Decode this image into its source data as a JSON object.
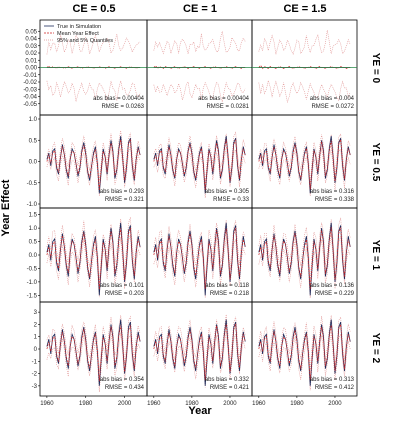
{
  "figure": {
    "xlabel": "Year",
    "ylabel": "Year Effect",
    "columns": [
      "CE = 0.5",
      "CE = 1",
      "CE = 1.5"
    ],
    "rows": [
      "YE = 0",
      "YE = 0.5",
      "YE = 1",
      "YE = 2"
    ],
    "legend": [
      {
        "label": "True in Simulation",
        "color": "#1a2a5a",
        "style": "solid"
      },
      {
        "label": "Mean Year Effect",
        "color": "#cc2222",
        "style": "dashed"
      },
      {
        "label": "95% and 5% Quantiles",
        "color": "#e09090",
        "style": "dotted"
      }
    ]
  },
  "chart_data": {
    "type": "line",
    "xlim": [
      1958,
      2010
    ],
    "x_ticks": [
      1960,
      1980,
      2000
    ],
    "x_tick_labels": [
      "1960",
      "1980",
      "2000"
    ],
    "rows": [
      {
        "name": "YE = 0",
        "ylim": [
          -0.06,
          0.06
        ],
        "y_ticks": [
          -0.05,
          -0.04,
          -0.03,
          -0.02,
          -0.01,
          0.0,
          0.01,
          0.02,
          0.03,
          0.04,
          0.05
        ],
        "y_tick_labels": [
          "-0.05",
          "-0.04",
          "-0.03",
          "-0.02",
          "-0.01",
          "0.00",
          "0.01",
          "0.02",
          "0.03",
          "0.04",
          "0.05"
        ],
        "amp": 0.0
      },
      {
        "name": "YE = 0.5",
        "ylim": [
          -1.0,
          1.0
        ],
        "y_ticks": [
          -1.0,
          -0.5,
          0.0,
          0.5,
          1.0
        ],
        "y_tick_labels": [
          "-1.0",
          "-0.5",
          "0.0",
          "0.5",
          "1.0"
        ],
        "amp": 0.5
      },
      {
        "name": "YE = 1",
        "ylim": [
          -1.6,
          1.6
        ],
        "y_ticks": [
          -1.5,
          -1.0,
          -0.5,
          0.0,
          0.5,
          1.0,
          1.5
        ],
        "y_tick_labels": [
          "-1.5",
          "-1.0",
          "-0.5",
          "0.0",
          "0.5",
          "1.0",
          "1.5"
        ],
        "amp": 1.0
      },
      {
        "name": "YE = 2",
        "ylim": [
          -3.5,
          3.5
        ],
        "y_ticks": [
          -3,
          -2,
          -1,
          0,
          1,
          2,
          3
        ],
        "y_tick_labels": [
          "-3",
          "-2",
          "-1",
          "0",
          "1",
          "2",
          "3"
        ],
        "amp": 2.0
      }
    ],
    "panels": [
      [
        {
          "abs_bias": "abs bias = 0.00404",
          "rmse": "RMSE = 0.0263"
        },
        {
          "abs_bias": "abs bias = 0.00404",
          "rmse": "RMSE = 0.0281"
        },
        {
          "abs_bias": "abs bias = 0.004",
          "rmse": "RMSE = 0.0272"
        }
      ],
      [
        {
          "abs_bias": "abs bias = 0.293",
          "rmse": "RMSE = 0.321"
        },
        {
          "abs_bias": "abs bias = 0.305",
          "rmse": "RMSE = 0.33"
        },
        {
          "abs_bias": "abs bias = 0.316",
          "rmse": "RMSE = 0.338"
        }
      ],
      [
        {
          "abs_bias": "abs bias = 0.101",
          "rmse": "RMSE = 0.203"
        },
        {
          "abs_bias": "abs bias = 0.118",
          "rmse": "RMSE = 0.218"
        },
        {
          "abs_bias": "abs bias = 0.136",
          "rmse": "RMSE = 0.229"
        }
      ],
      [
        {
          "abs_bias": "abs bias = 0.354",
          "rmse": "RMSE = 0.434"
        },
        {
          "abs_bias": "abs bias = 0.332",
          "rmse": "RMSE = 0.421"
        },
        {
          "abs_bias": "abs bias = 0.313",
          "rmse": "RMSE = 0.412"
        }
      ]
    ],
    "years": [
      1960,
      1961,
      1962,
      1963,
      1964,
      1965,
      1966,
      1967,
      1968,
      1969,
      1970,
      1971,
      1972,
      1973,
      1974,
      1975,
      1976,
      1977,
      1978,
      1979,
      1980,
      1981,
      1982,
      1983,
      1984,
      1985,
      1986,
      1987,
      1988,
      1989,
      1990,
      1991,
      1992,
      1993,
      1994,
      1995,
      1996,
      1997,
      1998,
      1999,
      2000,
      2001,
      2002,
      2003,
      2004,
      2005,
      2006,
      2007,
      2008
    ],
    "true_pattern": [
      0.1,
      0.4,
      -0.2,
      0.5,
      0.6,
      -0.3,
      -0.6,
      0.2,
      0.8,
      0.3,
      -0.4,
      -0.8,
      0.1,
      0.6,
      0.4,
      -0.1,
      -0.7,
      -0.3,
      0.5,
      0.9,
      0.4,
      -0.5,
      -0.9,
      -0.2,
      0.4,
      0.7,
      -0.1,
      -1.5,
      -0.4,
      0.6,
      0.2,
      -0.6,
      0.3,
      1.0,
      0.5,
      -0.8,
      -0.4,
      0.6,
      1.2,
      0.2,
      -1.0,
      -0.3,
      0.9,
      1.1,
      -0.2,
      -0.9,
      0.1,
      0.7,
      0.3
    ],
    "mean_pattern": [
      0.0,
      0.3,
      -0.1,
      0.4,
      0.5,
      -0.2,
      -0.5,
      0.2,
      0.7,
      0.3,
      -0.3,
      -0.7,
      0.1,
      0.5,
      0.4,
      -0.1,
      -0.6,
      -0.2,
      0.4,
      0.8,
      0.3,
      -0.4,
      -0.8,
      -0.2,
      0.3,
      0.6,
      -0.1,
      -1.3,
      -0.3,
      0.5,
      0.2,
      -0.5,
      0.3,
      0.9,
      0.4,
      -0.7,
      -0.3,
      0.5,
      1.0,
      0.2,
      -0.9,
      -0.2,
      0.8,
      1.0,
      -0.1,
      -0.8,
      0.1,
      0.6,
      0.3
    ],
    "null_mean_pattern": [
      0.0,
      0.002,
      -0.001,
      0.001,
      0.0,
      -0.001,
      0.001,
      0.0,
      0.0,
      -0.001,
      0.0,
      0.001,
      0.0,
      -0.001,
      0.0,
      0.0,
      0.001,
      0.0,
      -0.001,
      0.0,
      0.0,
      0.001,
      0.0,
      0.0,
      -0.001,
      0.0,
      0.0,
      0.001,
      0.0,
      0.0,
      -0.001,
      0.0,
      0.001,
      0.0,
      0.0,
      -0.001,
      0.0,
      0.0,
      0.001,
      0.0,
      0.0,
      -0.001,
      0.0,
      0.001,
      0.0,
      0.0,
      -0.001,
      0.0,
      0.0
    ],
    "null_upper_pattern": [
      0.02,
      0.03,
      0.025,
      0.035,
      0.03,
      0.02,
      0.03,
      0.04,
      0.03,
      0.02,
      0.025,
      0.035,
      0.03,
      0.02,
      0.03,
      0.04,
      0.035,
      0.025,
      0.02,
      0.03,
      0.035,
      0.03,
      0.02,
      0.025,
      0.03,
      0.04,
      0.03,
      0.02,
      0.025,
      0.03,
      0.035,
      0.04,
      0.03,
      0.02,
      0.025,
      0.035,
      0.045,
      0.03,
      0.02,
      0.025,
      0.03,
      0.035,
      0.04,
      0.03,
      0.02,
      0.025,
      0.03,
      0.035,
      0.03
    ],
    "quantile_spread": 0.35
  }
}
